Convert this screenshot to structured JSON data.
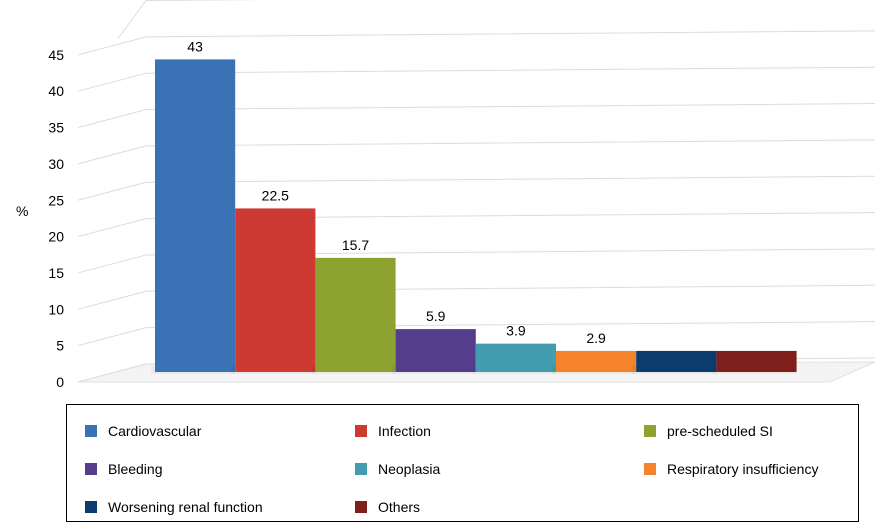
{
  "chart_data": {
    "type": "bar",
    "title": "",
    "xlabel": "",
    "ylabel": "%",
    "ylim": [
      0,
      50
    ],
    "yticks": [
      0,
      5,
      10,
      15,
      20,
      25,
      30,
      35,
      40,
      45
    ],
    "grid": true,
    "legend_position": "bottom",
    "series": [
      {
        "name": "Cardiovascular",
        "value": 43,
        "label": "43",
        "color": "#3a72b5"
      },
      {
        "name": "Infection",
        "value": 22.5,
        "label": "22.5",
        "color": "#cd3a33"
      },
      {
        "name": "pre-scheduled SI",
        "value": 15.7,
        "label": "15.7",
        "color": "#8ea22f"
      },
      {
        "name": "Bleeding",
        "value": 5.9,
        "label": "5.9",
        "color": "#553d8c"
      },
      {
        "name": "Neoplasia",
        "value": 3.9,
        "label": "3.9",
        "color": "#429db0"
      },
      {
        "name": "Respiratory insufficiency",
        "value": 2.9,
        "label": "2.9",
        "color": "#f5832c"
      },
      {
        "name": "Worsening renal function",
        "value": 2.9,
        "label": "",
        "color": "#0c3b6e"
      },
      {
        "name": "Others",
        "value": 2.9,
        "label": "",
        "color": "#7e1f1c"
      }
    ]
  }
}
